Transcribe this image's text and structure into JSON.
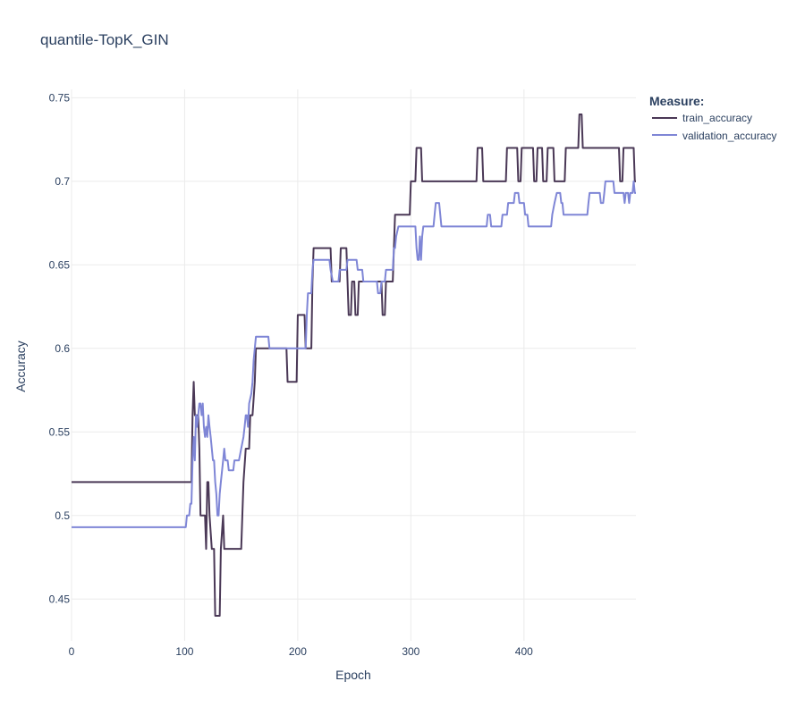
{
  "chart_data": {
    "type": "line",
    "title": "quantile-TopK_GIN",
    "xlabel": "Epoch",
    "ylabel": "Accuracy",
    "xlim": [
      0,
      499
    ],
    "ylim": [
      0.425,
      0.755
    ],
    "xticks": [
      0,
      100,
      200,
      300,
      400
    ],
    "yticks": [
      0.45,
      0.5,
      0.55,
      0.6,
      0.65,
      0.7,
      0.75
    ],
    "ytick_labels": [
      "0.45",
      "0.5",
      "0.55",
      "0.6",
      "0.65",
      "0.7",
      "0.75"
    ],
    "grid": true,
    "legend": {
      "title": "Measure:",
      "placement": "top-right"
    },
    "series": [
      {
        "name": "train_accuracy",
        "color": "#4a3856",
        "points": [
          [
            0,
            0.52
          ],
          [
            106,
            0.52
          ],
          [
            107,
            0.56
          ],
          [
            108,
            0.58
          ],
          [
            109,
            0.56
          ],
          [
            112,
            0.56
          ],
          [
            113,
            0.54
          ],
          [
            114,
            0.5
          ],
          [
            118,
            0.5
          ],
          [
            119,
            0.48
          ],
          [
            120,
            0.52
          ],
          [
            121,
            0.52
          ],
          [
            122,
            0.5
          ],
          [
            124,
            0.48
          ],
          [
            126,
            0.48
          ],
          [
            127,
            0.44
          ],
          [
            131,
            0.44
          ],
          [
            132,
            0.48
          ],
          [
            134,
            0.5
          ],
          [
            135,
            0.48
          ],
          [
            150,
            0.48
          ],
          [
            151,
            0.5
          ],
          [
            152,
            0.52
          ],
          [
            154,
            0.54
          ],
          [
            157,
            0.54
          ],
          [
            158,
            0.56
          ],
          [
            160,
            0.56
          ],
          [
            162,
            0.58
          ],
          [
            163,
            0.6
          ],
          [
            190,
            0.6
          ],
          [
            191,
            0.58
          ],
          [
            199,
            0.58
          ],
          [
            200,
            0.62
          ],
          [
            206,
            0.62
          ],
          [
            207,
            0.6
          ],
          [
            212,
            0.6
          ],
          [
            213,
            0.64
          ],
          [
            214,
            0.66
          ],
          [
            229,
            0.66
          ],
          [
            230,
            0.64
          ],
          [
            237,
            0.64
          ],
          [
            238,
            0.66
          ],
          [
            243,
            0.66
          ],
          [
            244,
            0.64
          ],
          [
            245,
            0.62
          ],
          [
            247,
            0.62
          ],
          [
            248,
            0.64
          ],
          [
            250,
            0.64
          ],
          [
            251,
            0.62
          ],
          [
            253,
            0.62
          ],
          [
            254,
            0.64
          ],
          [
            274,
            0.64
          ],
          [
            275,
            0.62
          ],
          [
            277,
            0.62
          ],
          [
            278,
            0.64
          ],
          [
            284,
            0.64
          ],
          [
            285,
            0.66
          ],
          [
            286,
            0.68
          ],
          [
            299,
            0.68
          ],
          [
            300,
            0.7
          ],
          [
            304,
            0.7
          ],
          [
            305,
            0.72
          ],
          [
            309,
            0.72
          ],
          [
            310,
            0.7
          ],
          [
            358,
            0.7
          ],
          [
            359,
            0.72
          ],
          [
            363,
            0.72
          ],
          [
            364,
            0.7
          ],
          [
            384,
            0.7
          ],
          [
            385,
            0.72
          ],
          [
            394,
            0.72
          ],
          [
            395,
            0.7
          ],
          [
            397,
            0.7
          ],
          [
            398,
            0.72
          ],
          [
            408,
            0.72
          ],
          [
            409,
            0.7
          ],
          [
            411,
            0.7
          ],
          [
            412,
            0.72
          ],
          [
            416,
            0.72
          ],
          [
            417,
            0.7
          ],
          [
            420,
            0.7
          ],
          [
            421,
            0.72
          ],
          [
            426,
            0.72
          ],
          [
            427,
            0.7
          ],
          [
            436,
            0.7
          ],
          [
            437,
            0.72
          ],
          [
            448,
            0.72
          ],
          [
            449,
            0.74
          ],
          [
            451,
            0.74
          ],
          [
            452,
            0.72
          ],
          [
            484,
            0.72
          ],
          [
            485,
            0.7
          ],
          [
            487,
            0.7
          ],
          [
            488,
            0.72
          ],
          [
            497,
            0.72
          ],
          [
            498,
            0.7
          ],
          [
            499,
            0.7
          ]
        ]
      },
      {
        "name": "validation_accuracy",
        "color": "#7f86d6",
        "points": [
          [
            0,
            0.493
          ],
          [
            101,
            0.493
          ],
          [
            102,
            0.5
          ],
          [
            104,
            0.5
          ],
          [
            105,
            0.507
          ],
          [
            106,
            0.507
          ],
          [
            107,
            0.533
          ],
          [
            108,
            0.547
          ],
          [
            109,
            0.533
          ],
          [
            110,
            0.56
          ],
          [
            111,
            0.553
          ],
          [
            113,
            0.567
          ],
          [
            114,
            0.567
          ],
          [
            115,
            0.56
          ],
          [
            116,
            0.567
          ],
          [
            117,
            0.553
          ],
          [
            118,
            0.547
          ],
          [
            119,
            0.553
          ],
          [
            120,
            0.547
          ],
          [
            121,
            0.56
          ],
          [
            122,
            0.553
          ],
          [
            123,
            0.547
          ],
          [
            124,
            0.54
          ],
          [
            125,
            0.533
          ],
          [
            126,
            0.533
          ],
          [
            127,
            0.52
          ],
          [
            128,
            0.513
          ],
          [
            129,
            0.5
          ],
          [
            130,
            0.5
          ],
          [
            131,
            0.513
          ],
          [
            132,
            0.52
          ],
          [
            134,
            0.533
          ],
          [
            135,
            0.54
          ],
          [
            136,
            0.533
          ],
          [
            137,
            0.533
          ],
          [
            138,
            0.533
          ],
          [
            139,
            0.527
          ],
          [
            143,
            0.527
          ],
          [
            144,
            0.533
          ],
          [
            148,
            0.533
          ],
          [
            150,
            0.54
          ],
          [
            152,
            0.547
          ],
          [
            153,
            0.553
          ],
          [
            154,
            0.56
          ],
          [
            155,
            0.56
          ],
          [
            156,
            0.553
          ],
          [
            157,
            0.567
          ],
          [
            159,
            0.573
          ],
          [
            160,
            0.58
          ],
          [
            161,
            0.593
          ],
          [
            162,
            0.6
          ],
          [
            163,
            0.607
          ],
          [
            174,
            0.607
          ],
          [
            175,
            0.6
          ],
          [
            207,
            0.6
          ],
          [
            208,
            0.62
          ],
          [
            209,
            0.633
          ],
          [
            212,
            0.633
          ],
          [
            213,
            0.647
          ],
          [
            214,
            0.653
          ],
          [
            228,
            0.653
          ],
          [
            229,
            0.647
          ],
          [
            231,
            0.64
          ],
          [
            236,
            0.64
          ],
          [
            237,
            0.647
          ],
          [
            243,
            0.647
          ],
          [
            244,
            0.653
          ],
          [
            252,
            0.653
          ],
          [
            253,
            0.647
          ],
          [
            257,
            0.647
          ],
          [
            258,
            0.64
          ],
          [
            270,
            0.64
          ],
          [
            271,
            0.633
          ],
          [
            273,
            0.633
          ],
          [
            274,
            0.64
          ],
          [
            277,
            0.64
          ],
          [
            278,
            0.647
          ],
          [
            284,
            0.647
          ],
          [
            285,
            0.66
          ],
          [
            286,
            0.66
          ],
          [
            287,
            0.667
          ],
          [
            289,
            0.673
          ],
          [
            304,
            0.673
          ],
          [
            305,
            0.66
          ],
          [
            306,
            0.653
          ],
          [
            307,
            0.653
          ],
          [
            308,
            0.667
          ],
          [
            309,
            0.653
          ],
          [
            310,
            0.667
          ],
          [
            311,
            0.673
          ],
          [
            320,
            0.673
          ],
          [
            321,
            0.68
          ],
          [
            322,
            0.687
          ],
          [
            325,
            0.687
          ],
          [
            326,
            0.68
          ],
          [
            327,
            0.673
          ],
          [
            367,
            0.673
          ],
          [
            368,
            0.68
          ],
          [
            370,
            0.68
          ],
          [
            371,
            0.673
          ],
          [
            380,
            0.673
          ],
          [
            381,
            0.68
          ],
          [
            385,
            0.68
          ],
          [
            386,
            0.687
          ],
          [
            391,
            0.687
          ],
          [
            392,
            0.693
          ],
          [
            395,
            0.693
          ],
          [
            396,
            0.687
          ],
          [
            400,
            0.687
          ],
          [
            401,
            0.68
          ],
          [
            403,
            0.68
          ],
          [
            404,
            0.673
          ],
          [
            424,
            0.673
          ],
          [
            425,
            0.68
          ],
          [
            427,
            0.687
          ],
          [
            429,
            0.693
          ],
          [
            432,
            0.693
          ],
          [
            433,
            0.687
          ],
          [
            434,
            0.687
          ],
          [
            435,
            0.68
          ],
          [
            456,
            0.68
          ],
          [
            457,
            0.687
          ],
          [
            458,
            0.693
          ],
          [
            467,
            0.693
          ],
          [
            468,
            0.687
          ],
          [
            470,
            0.687
          ],
          [
            471,
            0.693
          ],
          [
            472,
            0.7
          ],
          [
            479,
            0.7
          ],
          [
            480,
            0.693
          ],
          [
            488,
            0.693
          ],
          [
            489,
            0.687
          ],
          [
            490,
            0.693
          ],
          [
            492,
            0.693
          ],
          [
            493,
            0.687
          ],
          [
            494,
            0.693
          ],
          [
            496,
            0.693
          ],
          [
            497,
            0.7
          ],
          [
            498,
            0.693
          ],
          [
            499,
            0.693
          ]
        ]
      }
    ]
  }
}
